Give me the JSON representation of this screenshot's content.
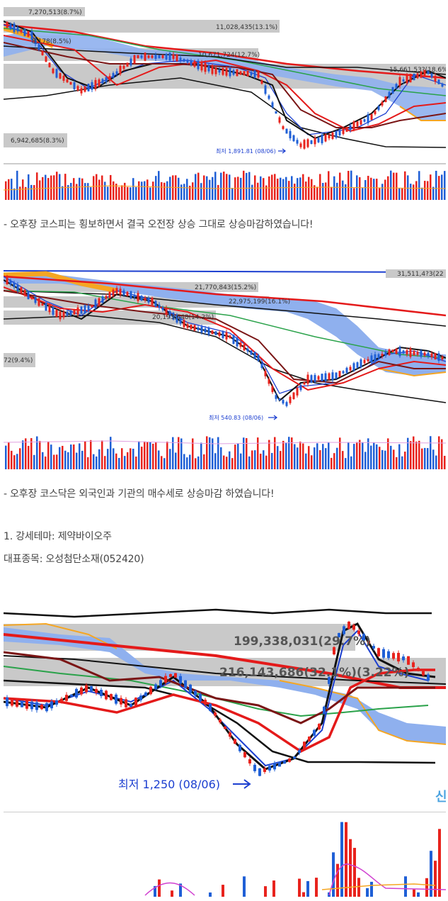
{
  "article": {
    "kospi_caption": "- 오후장 코스피는 횡보하면서 결국 오전장 상승 그대로 상승마감하였습니다!",
    "kosdaq_caption": "- 오후장 코스닥은 외국인과 기관의 매수세로 상승마감 하였습니다!",
    "theme_line": "1. 강세테마: 제약바이오주",
    "stock_line": "대표종목: 오성첨단소재(052420)"
  },
  "charts": {
    "kospi": {
      "labels": [
        "7,270,513(8.7%)",
        "11,028,435(13.1%)",
        "8,178(8.5%)",
        "10,671,724(12.7%)",
        "15,661,53?(18.6%)",
        "6,942,685(8.3%)"
      ],
      "low_note": "최저 1,891.81 (08/06)"
    },
    "kosdaq": {
      "labels": [
        "21,770,843(15.2%)",
        "22,975,199(16.1%)",
        "20,193,648(14.2%)",
        "72(9.4%)",
        "31,511,4?3(22"
      ],
      "low_note": "최저 540.83 (08/06)"
    },
    "stock": {
      "labels": [
        "199,338,031(29.7%)",
        "216,143,686(32.1%)(3.22%)"
      ],
      "low_note": "최저 1,250 (08/06)",
      "corner_mark": "신"
    }
  },
  "colors": {
    "up": "#e8231d",
    "down": "#1f5fd6",
    "cloud": "#8fb0ee",
    "cloud_edge": "#f5a623",
    "ma_red": "#e41a1a",
    "ma_black": "#111111",
    "ma_green": "#2aa24a",
    "ma_brown": "#7a1515",
    "ma_blue": "#1c3fd0"
  }
}
